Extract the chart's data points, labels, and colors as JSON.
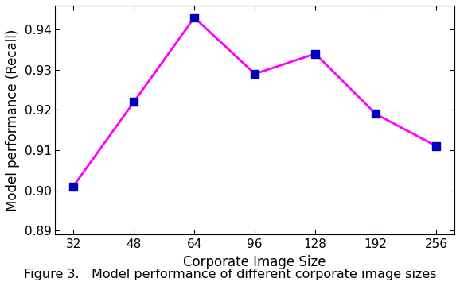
{
  "x_values": [
    32,
    48,
    64,
    96,
    128,
    192,
    256
  ],
  "x_positions": [
    0,
    1,
    2,
    3,
    4,
    5,
    6
  ],
  "y": [
    0.901,
    0.922,
    0.943,
    0.929,
    0.934,
    0.919,
    0.911
  ],
  "line_color": "#FF00FF",
  "marker_color": "#0000BB",
  "marker": "s",
  "marker_size": 7,
  "line_width": 2.0,
  "xlabel": "Corporate Image Size",
  "ylabel": "Model performance (Recall)",
  "ylim": [
    0.889,
    0.946
  ],
  "yticks": [
    0.89,
    0.9,
    0.91,
    0.92,
    0.93,
    0.94
  ],
  "caption": "Figure 3.   Model performance of different corporate image sizes",
  "background_color": "#FFFFFF",
  "xlabel_fontsize": 12,
  "ylabel_fontsize": 12,
  "tick_fontsize": 11,
  "caption_fontsize": 11.5
}
